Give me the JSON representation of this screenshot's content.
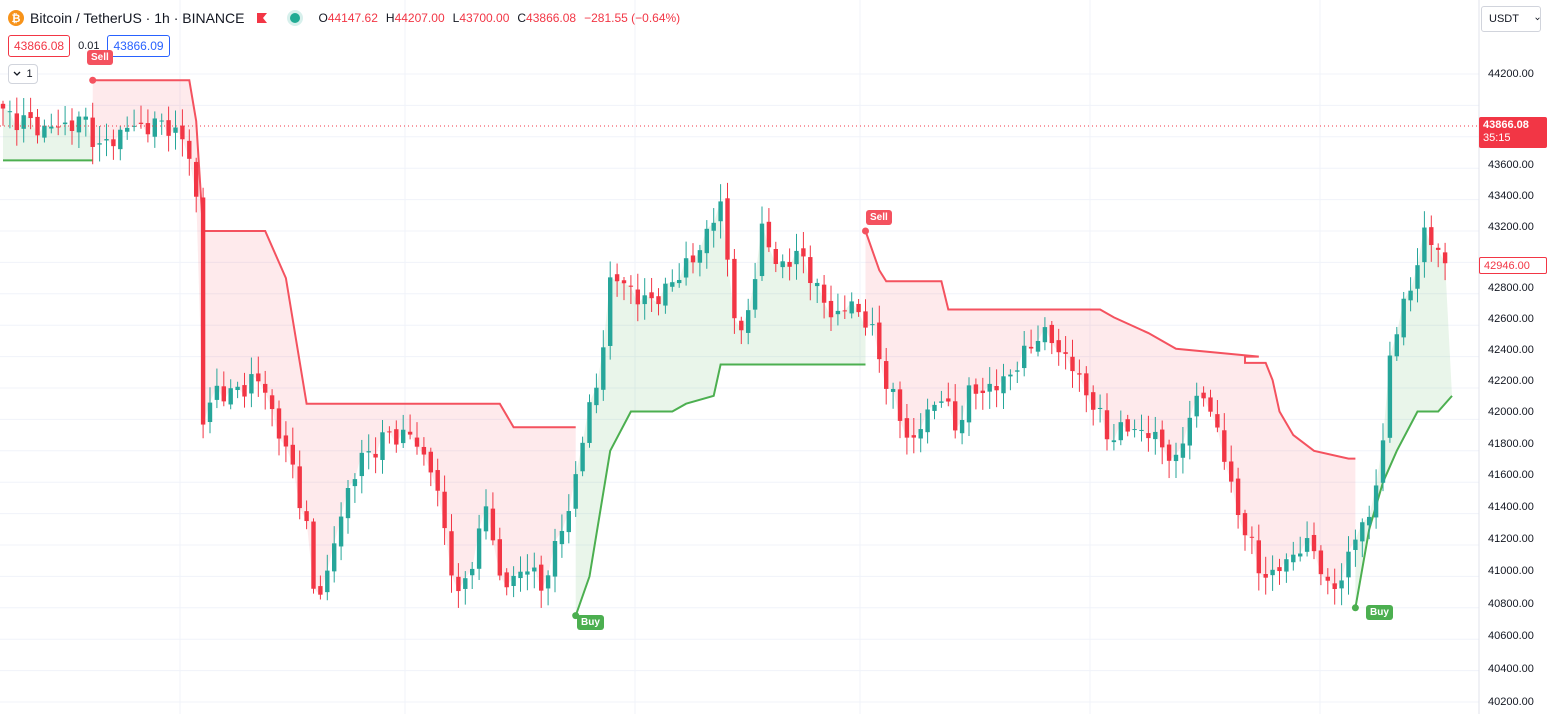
{
  "header": {
    "symbol_title": "Bitcoin / TetherUS · 1h · BINANCE",
    "coin_glyph": "₿",
    "ohlc": [
      {
        "label": "O",
        "value": "44147.62"
      },
      {
        "label": "H",
        "value": "44207.00"
      },
      {
        "label": "L",
        "value": "43700.00"
      },
      {
        "label": "C",
        "value": "43866.08"
      },
      {
        "label": "",
        "value": "−281.55 (−0.64%)"
      }
    ]
  },
  "trade": {
    "sell_price": "43866.08",
    "spread": "0.01",
    "buy_price": "43866.09"
  },
  "indicators_toggle": {
    "count": "1"
  },
  "currency": {
    "value": "USDT"
  },
  "price_axis": {
    "labels": [
      "44200.00",
      "43600.00",
      "43400.00",
      "43200.00",
      "42800.00",
      "42600.00",
      "42400.00",
      "42200.00",
      "42000.00",
      "41800.00",
      "41600.00",
      "41400.00",
      "41200.00",
      "41000.00",
      "40800.00",
      "40600.00",
      "40400.00",
      "40200.00"
    ],
    "last_price": "43866.08",
    "countdown": "35:15",
    "marker_price": "42946.00"
  },
  "signals": [
    {
      "type": "sell",
      "label": "Sell"
    },
    {
      "type": "sell",
      "label": "Sell"
    },
    {
      "type": "buy",
      "label": "Buy"
    },
    {
      "type": "buy",
      "label": "Buy"
    }
  ],
  "colors": {
    "up": "#26a69a",
    "down": "#f23645",
    "supertrend_up": "#4caf50",
    "supertrend_down": "#f4525f",
    "fill_up": "rgba(76,175,80,0.12)",
    "fill_down": "rgba(244,82,95,0.12)"
  },
  "chart_data": {
    "type": "candlestick",
    "y_range": [
      40200,
      44200
    ],
    "candle_count": 210,
    "supertrend": {
      "sell_signal_candles": [
        13,
        125
      ],
      "buy_signal_candles": [
        83,
        196
      ]
    },
    "last_close": 43866.08
  }
}
